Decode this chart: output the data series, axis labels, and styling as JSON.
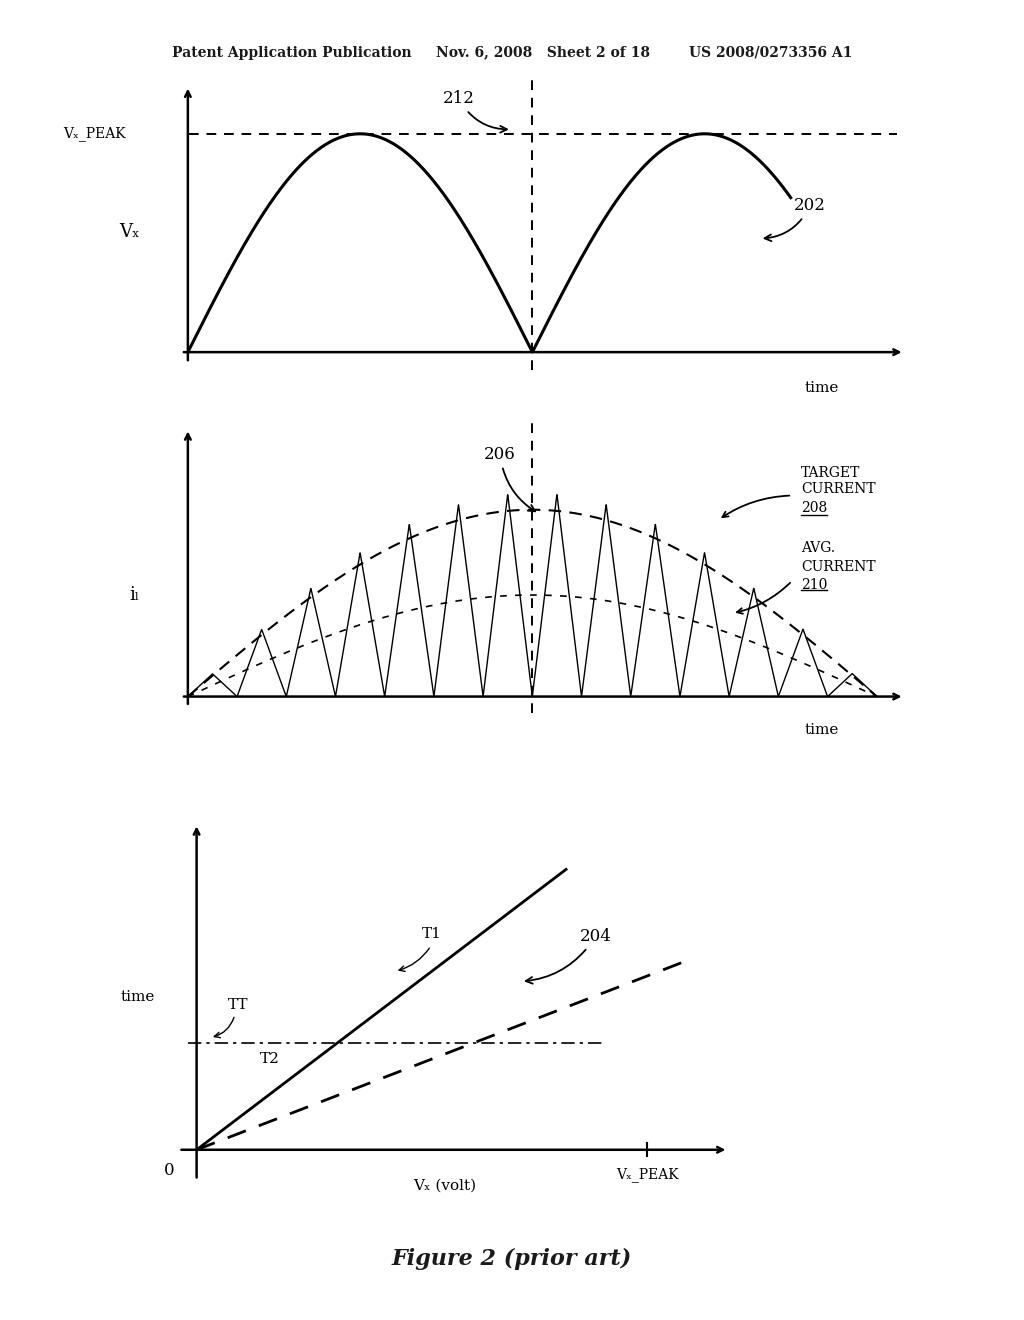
{
  "bg_color": "#ffffff",
  "header_text": "Patent Application Publication     Nov. 6, 2008   Sheet 2 of 18        US 2008/0273356 A1",
  "figure_caption": "Figure 2 (prior art)",
  "plot1": {
    "ylabel": "Vₓ",
    "xlabel": "time",
    "vx_peak_label": "Vₓ_PEAK",
    "label_202": "202",
    "label_212": "212"
  },
  "plot2": {
    "ylabel": "iₗ",
    "xlabel": "time",
    "label_206": "206",
    "label_208": "208",
    "label_210": "210",
    "target_current_line1": "TARGET",
    "target_current_line2": "CURRENT",
    "avg_current_line1": "AVG.",
    "avg_current_line2": "CURRENT"
  },
  "plot3": {
    "xlabel": "Vₓ (volt)",
    "ylabel": "time",
    "vx_peak_label": "Vₓ_PEAK",
    "label_tt": "TT",
    "label_t1": "T1",
    "label_t2": "T2",
    "label_204": "204",
    "origin_label": "0"
  }
}
